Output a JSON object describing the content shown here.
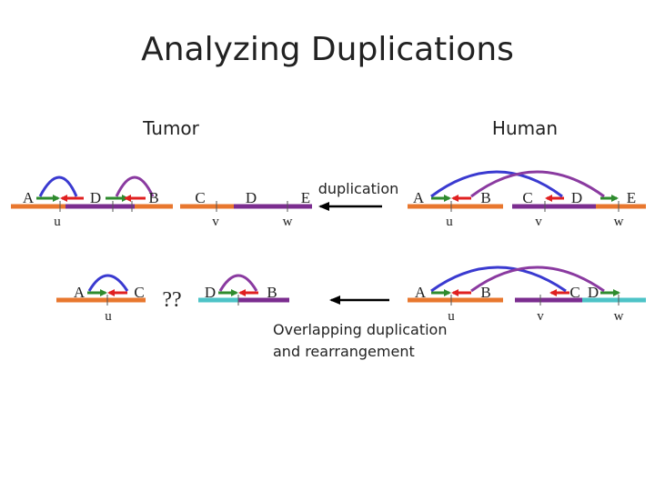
{
  "title": "Analyzing Duplications",
  "headers": {
    "tumor": "Tumor",
    "human": "Human"
  },
  "captions": {
    "duplication": "duplication",
    "overlap_line1": "Overlapping duplication",
    "overlap_line2": "and rearrangement"
  },
  "unknown_mark": "??",
  "labels": {
    "top_tumor": {
      "A": "A",
      "D": "D",
      "B": "B",
      "C": "C",
      "D2": "D",
      "E": "E",
      "u": "u",
      "v": "v",
      "w": "w"
    },
    "top_human": {
      "A": "A",
      "B": "B",
      "C": "C",
      "D": "D",
      "E": "E",
      "u": "u",
      "v": "v",
      "w": "w"
    },
    "bottom_tumor": {
      "A": "A",
      "C": "C",
      "u": "u",
      "D": "D",
      "B": "B"
    },
    "bottom_human": {
      "A": "A",
      "B": "B",
      "C": "C",
      "D": "D",
      "u": "u",
      "v": "v",
      "w": "w"
    }
  },
  "colors": {
    "orange": "#e8772e",
    "purple": "#7b2d8f",
    "cyan": "#4dc3c7",
    "green_arrow": "#2e8b2e",
    "red_arrow": "#e02020",
    "blue_arc": "#3a3ad0",
    "purple_arc": "#8a3aa0",
    "text": "#222222"
  }
}
